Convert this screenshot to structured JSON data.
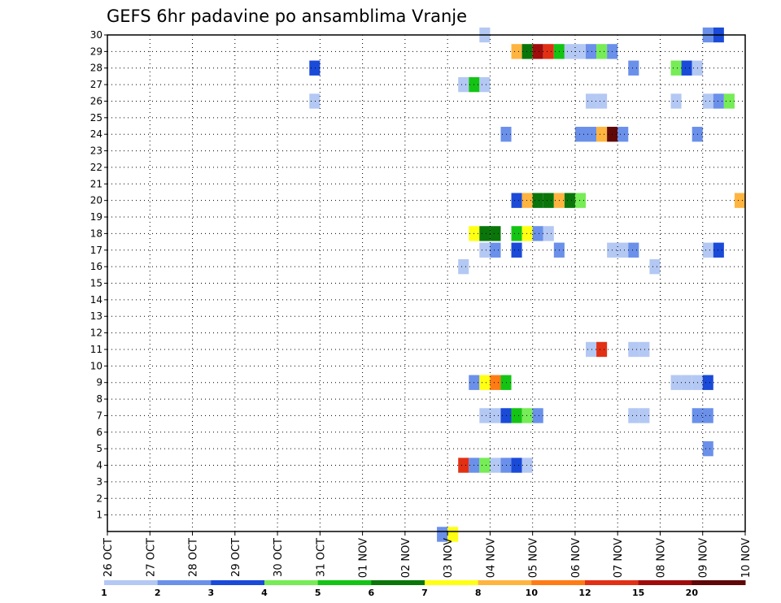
{
  "chart_data": {
    "type": "heatmap",
    "title": "GEFS 6hr padavine po ansamblima Vranje",
    "xlabel": "",
    "ylabel": "",
    "x_ticks": [
      "26 OCT",
      "27 OCT",
      "28 OCT",
      "29 OCT",
      "30 OCT",
      "31 OCT",
      "01 NOV",
      "02 NOV",
      "03 NOV",
      "04 NOV",
      "05 NOV",
      "06 NOV",
      "07 NOV",
      "08 NOV",
      "09 NOV",
      "10 NOV"
    ],
    "x_range_days": [
      0,
      15
    ],
    "step_hours": 6,
    "y_ticks": [
      1,
      2,
      3,
      4,
      5,
      6,
      7,
      8,
      9,
      10,
      11,
      12,
      13,
      14,
      15,
      16,
      17,
      18,
      19,
      20,
      21,
      22,
      23,
      24,
      25,
      26,
      27,
      28,
      29,
      30
    ],
    "y_range": [
      0,
      30
    ],
    "grid": true,
    "colorbar": {
      "labels": [
        "1",
        "2",
        "3",
        "4",
        "5",
        "6",
        "7",
        "8",
        "10",
        "12",
        "15",
        "20"
      ],
      "colors": [
        "#b4c8f4",
        "#6a90ea",
        "#1a4ad8",
        "#76ec56",
        "#14c414",
        "#0a760a",
        "#ffff14",
        "#ffb440",
        "#ff7c14",
        "#e23014",
        "#a00c0c",
        "#600808"
      ]
    },
    "cells_note": "each cell = [member, start_day_offset_from_26OCT, color_class_index_0to11]",
    "cells": [
      [
        30,
        8.75,
        0
      ],
      [
        30,
        14.0,
        1
      ],
      [
        30,
        14.25,
        2
      ],
      [
        29,
        9.5,
        7
      ],
      [
        29,
        9.75,
        5
      ],
      [
        29,
        10.0,
        10
      ],
      [
        29,
        10.25,
        9
      ],
      [
        29,
        10.5,
        4
      ],
      [
        29,
        10.75,
        0
      ],
      [
        29,
        11.0,
        0
      ],
      [
        29,
        11.25,
        1
      ],
      [
        29,
        11.5,
        3
      ],
      [
        29,
        11.75,
        1
      ],
      [
        28,
        4.75,
        2
      ],
      [
        28,
        12.25,
        1
      ],
      [
        28,
        13.25,
        3
      ],
      [
        28,
        13.5,
        2
      ],
      [
        28,
        13.75,
        0
      ],
      [
        27,
        8.25,
        0
      ],
      [
        27,
        8.5,
        4
      ],
      [
        27,
        8.75,
        0
      ],
      [
        26,
        4.75,
        0
      ],
      [
        26,
        11.25,
        0
      ],
      [
        26,
        11.5,
        0
      ],
      [
        26,
        13.25,
        0
      ],
      [
        26,
        14.0,
        0
      ],
      [
        26,
        14.25,
        1
      ],
      [
        26,
        14.5,
        3
      ],
      [
        24,
        9.25,
        1
      ],
      [
        24,
        11.0,
        1
      ],
      [
        24,
        11.25,
        1
      ],
      [
        24,
        11.5,
        7
      ],
      [
        24,
        11.75,
        11
      ],
      [
        24,
        12.0,
        1
      ],
      [
        24,
        13.75,
        1
      ],
      [
        20,
        9.5,
        2
      ],
      [
        20,
        9.75,
        7
      ],
      [
        20,
        10.0,
        5
      ],
      [
        20,
        10.25,
        5
      ],
      [
        20,
        10.5,
        7
      ],
      [
        20,
        10.75,
        5
      ],
      [
        20,
        11.0,
        3
      ],
      [
        20,
        14.75,
        7
      ],
      [
        18,
        8.5,
        6
      ],
      [
        18,
        8.75,
        5
      ],
      [
        18,
        9.0,
        5
      ],
      [
        18,
        9.5,
        4
      ],
      [
        18,
        9.75,
        6
      ],
      [
        18,
        10.0,
        1
      ],
      [
        18,
        10.25,
        0
      ],
      [
        17,
        8.75,
        0
      ],
      [
        17,
        9.0,
        1
      ],
      [
        17,
        9.5,
        2
      ],
      [
        17,
        10.5,
        1
      ],
      [
        17,
        11.75,
        0
      ],
      [
        17,
        12.0,
        0
      ],
      [
        17,
        12.25,
        1
      ],
      [
        17,
        14.0,
        0
      ],
      [
        17,
        14.25,
        2
      ],
      [
        16,
        8.25,
        0
      ],
      [
        16,
        12.75,
        0
      ],
      [
        11,
        11.25,
        0
      ],
      [
        11,
        11.5,
        9
      ],
      [
        11,
        12.25,
        0
      ],
      [
        11,
        12.5,
        0
      ],
      [
        9,
        8.5,
        1
      ],
      [
        9,
        8.75,
        6
      ],
      [
        9,
        9.0,
        8
      ],
      [
        9,
        9.25,
        4
      ],
      [
        9,
        13.25,
        0
      ],
      [
        9,
        13.5,
        0
      ],
      [
        9,
        13.75,
        0
      ],
      [
        9,
        14.0,
        2
      ],
      [
        7,
        8.75,
        0
      ],
      [
        7,
        9.0,
        0
      ],
      [
        7,
        9.25,
        2
      ],
      [
        7,
        9.5,
        4
      ],
      [
        7,
        9.75,
        3
      ],
      [
        7,
        10.0,
        1
      ],
      [
        7,
        12.25,
        0
      ],
      [
        7,
        12.5,
        0
      ],
      [
        7,
        13.75,
        1
      ],
      [
        7,
        14.0,
        1
      ],
      [
        5,
        14.0,
        1
      ],
      [
        4,
        8.25,
        9
      ],
      [
        4,
        8.5,
        1
      ],
      [
        4,
        8.75,
        3
      ],
      [
        4,
        9.0,
        0
      ],
      [
        4,
        9.25,
        1
      ],
      [
        4,
        9.5,
        2
      ],
      [
        4,
        9.75,
        0
      ],
      [
        0,
        7.75,
        1
      ],
      [
        0,
        8.0,
        6
      ]
    ]
  }
}
